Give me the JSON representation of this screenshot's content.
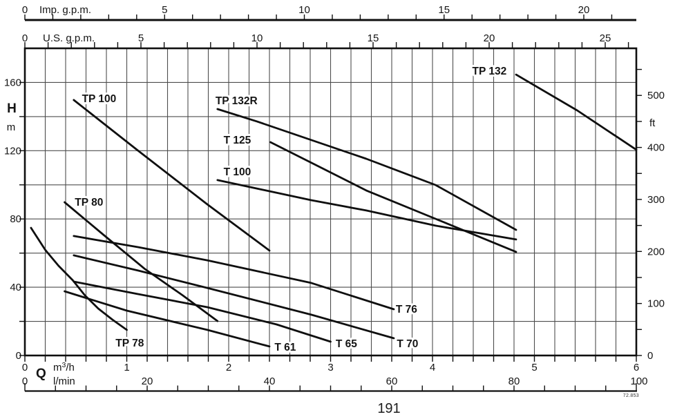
{
  "page": {
    "number": "191",
    "figure_code": "72.853"
  },
  "axes": {
    "imp_gpm": {
      "title": "Imp. g.p.m.",
      "tick_labels": [
        0,
        5,
        10,
        15,
        20
      ]
    },
    "us_gpm": {
      "title": "U.S. g.p.m.",
      "tick_labels": [
        0,
        5,
        10,
        15,
        20,
        25
      ]
    },
    "head_m": {
      "symbol": "H",
      "unit": "m",
      "tick_labels": [
        160,
        120,
        80,
        40,
        0
      ]
    },
    "head_ft": {
      "unit": "ft",
      "tick_labels": [
        500,
        400,
        300,
        200,
        100,
        0
      ]
    },
    "flow_m3h": {
      "symbol": "Q",
      "unit": "m³/h",
      "tick_labels": [
        0,
        1,
        2,
        3,
        4,
        5,
        6
      ]
    },
    "flow_lmin": {
      "unit": "l/min",
      "tick_labels": [
        0,
        20,
        40,
        60,
        80,
        100
      ]
    }
  },
  "colors": {
    "ink": "#0f0f0f",
    "grid": "#4d4d4d",
    "curve": "#0f0f0f"
  },
  "chart_data": {
    "type": "line",
    "title": "",
    "xlabel": "Q",
    "x_units": [
      "m³/h",
      "l/min",
      "U.S. g.p.m.",
      "Imp. g.p.m."
    ],
    "ylabel": "H",
    "y_units": [
      "m",
      "ft"
    ],
    "xlim_m3h": [
      0,
      6
    ],
    "ylim_m": [
      0,
      180
    ],
    "grid": {
      "x_step_m3h": 0.2,
      "y_step_m": 20,
      "on": true
    },
    "legend_position": "inline-labels",
    "series": [
      {
        "name": "TP 132",
        "points": [
          [
            4.82,
            164.6
          ],
          [
            5.42,
            143.6
          ],
          [
            6.0,
            120.6
          ]
        ],
        "label_at": [
          4.39,
          164.6
        ]
      },
      {
        "name": "TP 132R",
        "points": [
          [
            1.89,
            144.4
          ],
          [
            2.28,
            137.1
          ],
          [
            3.35,
            115.3
          ],
          [
            4.03,
            99.9
          ],
          [
            4.82,
            73.6
          ]
        ],
        "label_at": [
          1.87,
          147.2
        ]
      },
      {
        "name": "T 125",
        "points": [
          [
            2.41,
            125.0
          ],
          [
            2.87,
            111.2
          ],
          [
            3.35,
            96.7
          ],
          [
            4.03,
            80.1
          ],
          [
            4.82,
            60.7
          ]
        ],
        "label_at": [
          1.95,
          124.2
        ]
      },
      {
        "name": "T 100",
        "points": [
          [
            1.89,
            102.8
          ],
          [
            2.81,
            91.0
          ],
          [
            3.35,
            85.0
          ],
          [
            4.03,
            76.1
          ],
          [
            4.82,
            68.0
          ]
        ],
        "label_at": [
          1.95,
          105.6
        ]
      },
      {
        "name": "TP 100",
        "points": [
          [
            0.48,
            149.7
          ],
          [
            1.11,
            120.1
          ],
          [
            1.79,
            88.6
          ],
          [
            2.4,
            61.5
          ]
        ],
        "label_at": [
          0.56,
          148.4
        ]
      },
      {
        "name": "TP 80",
        "points": [
          [
            0.39,
            89.8
          ],
          [
            0.77,
            70.8
          ],
          [
            1.18,
            50.6
          ],
          [
            1.55,
            35.2
          ],
          [
            1.89,
            20.2
          ]
        ],
        "label_at": [
          0.49,
          87.8
        ]
      },
      {
        "name": "TP 78",
        "points": [
          [
            0.06,
            74.8
          ],
          [
            0.2,
            61.9
          ],
          [
            0.33,
            52.6
          ],
          [
            0.47,
            44.1
          ],
          [
            0.59,
            35.2
          ],
          [
            0.72,
            27.5
          ],
          [
            0.86,
            21.0
          ],
          [
            1.0,
            15.0
          ]
        ],
        "label_at": [
          0.89,
          5.3
        ]
      },
      {
        "name": "T 76",
        "points": [
          [
            0.48,
            70.0
          ],
          [
            1.11,
            63.5
          ],
          [
            1.79,
            55.8
          ],
          [
            2.81,
            42.5
          ],
          [
            3.62,
            27.1
          ]
        ],
        "label_at": [
          3.64,
          25.1
        ]
      },
      {
        "name": "T 70",
        "points": [
          [
            0.48,
            58.7
          ],
          [
            1.11,
            49.8
          ],
          [
            1.79,
            39.6
          ],
          [
            2.81,
            23.9
          ],
          [
            3.62,
            10.1
          ]
        ],
        "label_at": [
          3.65,
          4.9
        ]
      },
      {
        "name": "T 65",
        "points": [
          [
            0.48,
            43.3
          ],
          [
            1.11,
            36.0
          ],
          [
            1.79,
            28.3
          ],
          [
            2.47,
            18.2
          ],
          [
            3.0,
            8.1
          ]
        ],
        "label_at": [
          3.05,
          4.9
        ]
      },
      {
        "name": "T 61",
        "points": [
          [
            0.39,
            37.6
          ],
          [
            1.0,
            26.3
          ],
          [
            1.79,
            15.0
          ],
          [
            2.4,
            5.3
          ]
        ],
        "label_at": [
          2.45,
          2.8
        ]
      }
    ]
  }
}
